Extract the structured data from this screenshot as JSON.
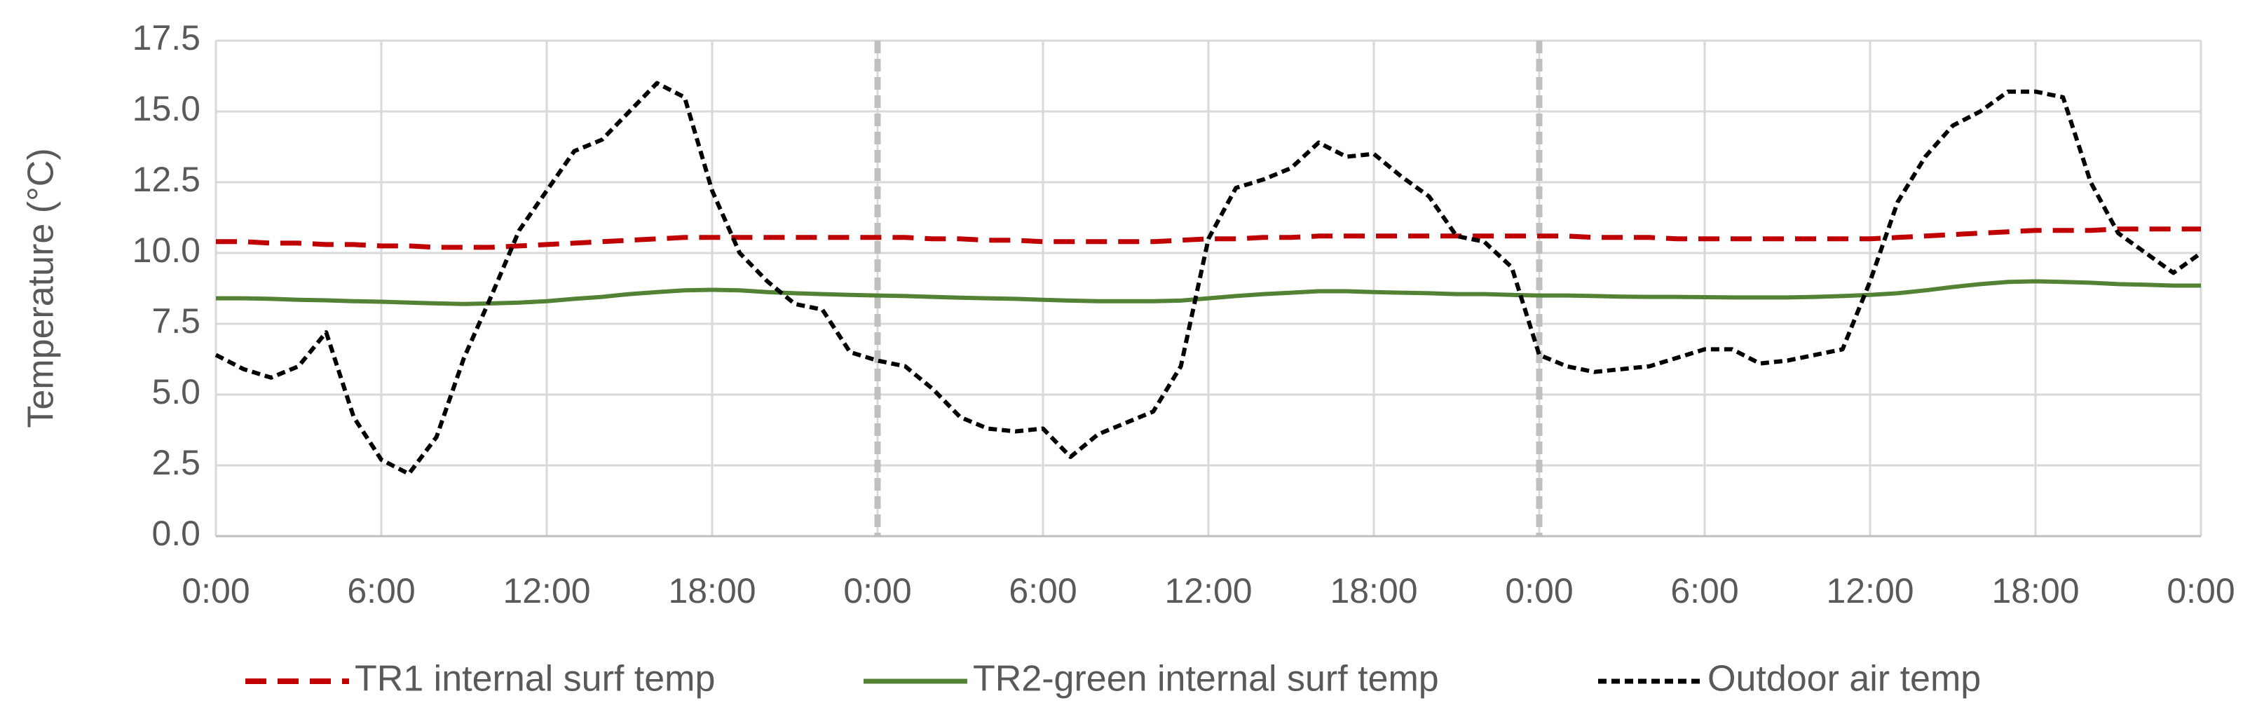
{
  "chart_data": {
    "type": "line",
    "y_label": "Temperature (°C)",
    "categories": [
      "0:00",
      null,
      null,
      null,
      null,
      null,
      "6:00",
      null,
      null,
      null,
      null,
      null,
      "12:00",
      null,
      null,
      null,
      null,
      null,
      "18:00",
      null,
      null,
      null,
      null,
      null,
      "0:00",
      null,
      null,
      null,
      null,
      null,
      "6:00",
      null,
      null,
      null,
      null,
      null,
      "12:00",
      null,
      null,
      null,
      null,
      null,
      "18:00",
      null,
      null,
      null,
      null,
      null,
      "0:00",
      null,
      null,
      null,
      null,
      null,
      "6:00",
      null,
      null,
      null,
      null,
      null,
      "12:00",
      null,
      null,
      null,
      null,
      null,
      "18:00",
      null,
      null,
      null,
      null,
      null,
      "0:00"
    ],
    "series": [
      {
        "name": "TR1 internal surf temp",
        "color": "#c00000",
        "style": "dashed",
        "values": [
          10.4,
          10.4,
          10.35,
          10.35,
          10.3,
          10.3,
          10.25,
          10.25,
          10.2,
          10.2,
          10.2,
          10.25,
          10.3,
          10.35,
          10.4,
          10.45,
          10.5,
          10.55,
          10.55,
          10.55,
          10.55,
          10.55,
          10.55,
          10.55,
          10.55,
          10.55,
          10.5,
          10.5,
          10.45,
          10.45,
          10.4,
          10.4,
          10.4,
          10.4,
          10.4,
          10.45,
          10.5,
          10.5,
          10.55,
          10.55,
          10.6,
          10.6,
          10.6,
          10.6,
          10.6,
          10.6,
          10.6,
          10.6,
          10.6,
          10.6,
          10.55,
          10.55,
          10.55,
          10.5,
          10.5,
          10.5,
          10.5,
          10.5,
          10.5,
          10.5,
          10.5,
          10.55,
          10.6,
          10.65,
          10.7,
          10.75,
          10.8,
          10.8,
          10.8,
          10.85,
          10.85,
          10.85,
          10.85
        ]
      },
      {
        "name": "TR2-green internal surf temp",
        "color": "#548235",
        "style": "solid",
        "values": [
          8.4,
          8.4,
          8.38,
          8.35,
          8.33,
          8.3,
          8.28,
          8.25,
          8.22,
          8.2,
          8.22,
          8.25,
          8.3,
          8.38,
          8.45,
          8.55,
          8.62,
          8.68,
          8.7,
          8.68,
          8.62,
          8.58,
          8.55,
          8.52,
          8.5,
          8.48,
          8.45,
          8.42,
          8.4,
          8.38,
          8.35,
          8.32,
          8.3,
          8.3,
          8.3,
          8.32,
          8.4,
          8.48,
          8.55,
          8.6,
          8.65,
          8.65,
          8.62,
          8.6,
          8.58,
          8.55,
          8.55,
          8.52,
          8.5,
          8.5,
          8.48,
          8.46,
          8.45,
          8.45,
          8.44,
          8.43,
          8.43,
          8.43,
          8.45,
          8.48,
          8.52,
          8.58,
          8.68,
          8.8,
          8.9,
          8.98,
          9.0,
          8.98,
          8.95,
          8.9,
          8.88,
          8.85,
          8.85
        ]
      },
      {
        "name": "Outdoor air temp",
        "color": "#000000",
        "style": "dotted",
        "values": [
          6.4,
          5.9,
          5.6,
          6.0,
          7.2,
          4.2,
          2.7,
          2.2,
          3.5,
          6.3,
          8.5,
          10.8,
          12.2,
          13.6,
          14.0,
          15.0,
          16.0,
          15.5,
          12.2,
          10.0,
          9.0,
          8.2,
          8.0,
          6.5,
          6.2,
          6.0,
          5.2,
          4.2,
          3.8,
          3.7,
          3.8,
          2.8,
          3.6,
          4.0,
          4.4,
          6.0,
          10.5,
          12.3,
          12.6,
          13.0,
          13.9,
          13.4,
          13.5,
          12.7,
          12.0,
          10.6,
          10.4,
          9.5,
          6.4,
          6.0,
          5.8,
          5.9,
          6.0,
          6.3,
          6.6,
          6.6,
          6.1,
          6.2,
          6.4,
          6.6,
          9.0,
          11.8,
          13.4,
          14.5,
          15.0,
          15.7,
          15.7,
          15.5,
          12.5,
          10.7,
          10.0,
          9.3,
          10.0
        ]
      }
    ],
    "ylim": [
      0,
      17.5
    ],
    "yticks": [
      {
        "value": 0,
        "label": "0.0"
      },
      {
        "value": 2.5,
        "label": "2.5"
      },
      {
        "value": 5,
        "label": "5.0"
      },
      {
        "value": 7.5,
        "label": "7.5"
      },
      {
        "value": 10,
        "label": "10.0"
      },
      {
        "value": 12.5,
        "label": "12.5"
      },
      {
        "value": 15,
        "label": "15.0"
      },
      {
        "value": 17.5,
        "label": "17.5"
      }
    ],
    "grid": true,
    "legend": "bottom"
  }
}
